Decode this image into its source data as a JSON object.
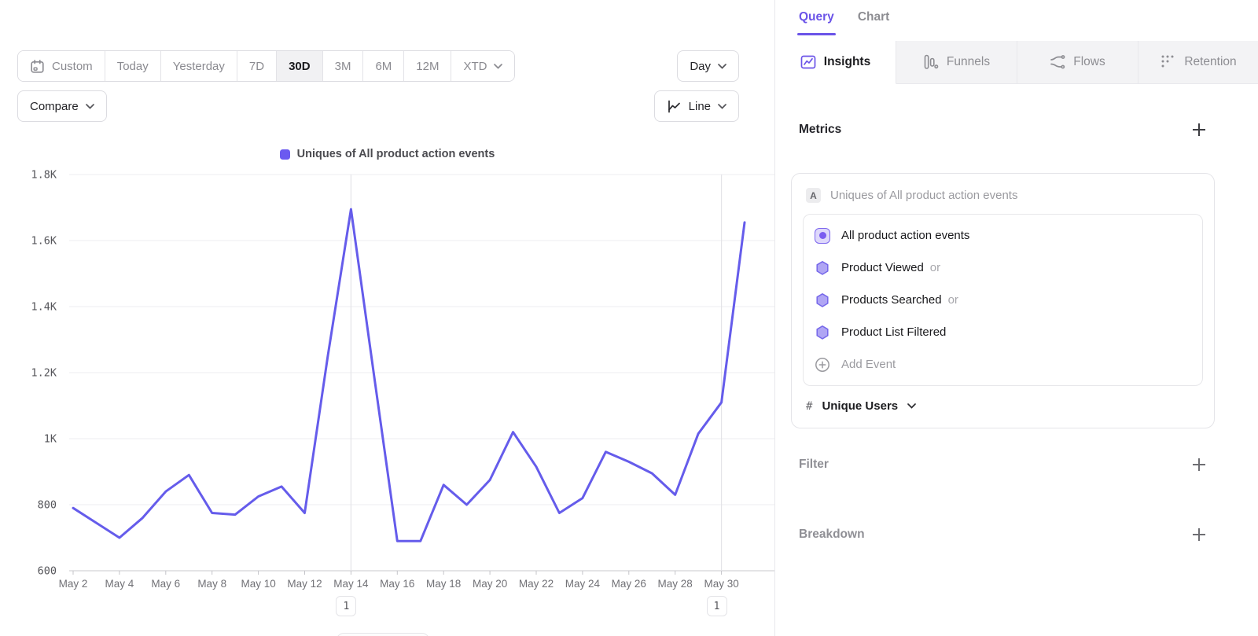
{
  "colors": {
    "accent": "#6b54e8",
    "line": "#655ceb",
    "legend_swatch": "#6b5af0",
    "grid": "#ededf0",
    "axis": "#c9c9ce",
    "annotation_grid": "#e4e4e8"
  },
  "toolbar": {
    "ranges": [
      "Custom",
      "Today",
      "Yesterday",
      "7D",
      "30D",
      "3M",
      "6M",
      "12M",
      "XTD"
    ],
    "selected_range": "30D",
    "granularity": "Day",
    "compare_label": "Compare",
    "chart_type": "Line"
  },
  "chart_data": {
    "type": "line",
    "legend_label": "Uniques of All product action events",
    "x": [
      "May 2",
      "May 3",
      "May 4",
      "May 5",
      "May 6",
      "May 7",
      "May 8",
      "May 9",
      "May 10",
      "May 11",
      "May 12",
      "May 13",
      "May 14",
      "May 15",
      "May 16",
      "May 17",
      "May 18",
      "May 19",
      "May 20",
      "May 21",
      "May 22",
      "May 23",
      "May 24",
      "May 25",
      "May 26",
      "May 27",
      "May 28",
      "May 29",
      "May 30",
      "May 31"
    ],
    "values": [
      790,
      745,
      700,
      760,
      840,
      890,
      775,
      770,
      825,
      855,
      775,
      1250,
      1695,
      1190,
      690,
      690,
      860,
      800,
      875,
      1020,
      915,
      775,
      820,
      960,
      930,
      895,
      830,
      1015,
      1110,
      1655
    ],
    "y_tick_labels": [
      "1.8K",
      "1.6K",
      "1.4K",
      "1.2K",
      "1K",
      "800",
      "600"
    ],
    "y_tick_values": [
      1800,
      1600,
      1400,
      1200,
      1000,
      800,
      600
    ],
    "ylim": [
      600,
      1800
    ],
    "x_tick_every": 2,
    "grid": "horizontal",
    "legend_position": "top-center",
    "annotations": [
      {
        "label": "1",
        "x_index": 12,
        "x_label": "May 14"
      },
      {
        "label": "1",
        "x_index": 28,
        "x_label": "May 30"
      }
    ]
  },
  "panel": {
    "view_tabs": [
      {
        "label": "Query",
        "active": true
      },
      {
        "label": "Chart",
        "active": false
      }
    ],
    "report_tabs": [
      {
        "label": "Insights",
        "icon": "insights-icon",
        "active": true
      },
      {
        "label": "Funnels",
        "icon": "funnels-icon",
        "active": false
      },
      {
        "label": "Flows",
        "icon": "flows-icon",
        "active": false
      },
      {
        "label": "Retention",
        "icon": "retention-icon",
        "active": false
      }
    ],
    "metrics": {
      "title": "Metrics",
      "group_badge": "A",
      "group_label": "Uniques of All product action events",
      "events": [
        {
          "label": "All product action events",
          "icon": "all-events-icon",
          "suffix": ""
        },
        {
          "label": "Product Viewed",
          "icon": "hexagon-icon",
          "suffix": "or"
        },
        {
          "label": "Products Searched",
          "icon": "hexagon-icon",
          "suffix": "or"
        },
        {
          "label": "Product List Filtered",
          "icon": "hexagon-icon",
          "suffix": ""
        }
      ],
      "add_event_label": "Add Event",
      "measure_prefix": "#",
      "measure_label": "Unique Users"
    },
    "filter_title": "Filter",
    "breakdown_title": "Breakdown"
  }
}
